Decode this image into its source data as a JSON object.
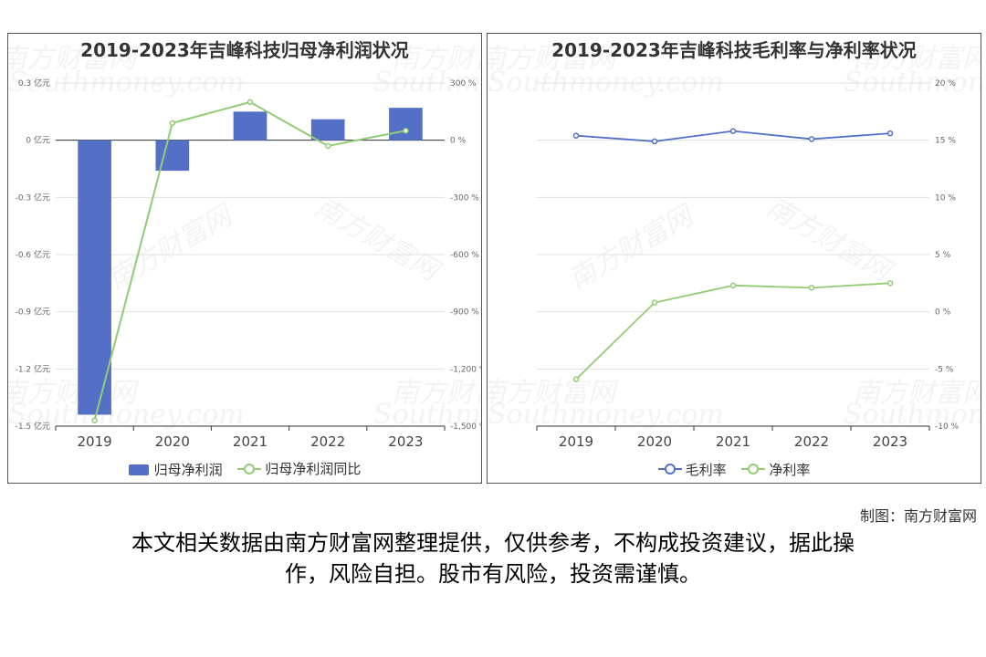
{
  "watermark": {
    "brand": "南方财富网",
    "url": "Southmoney.com"
  },
  "credit": "制图：南方财富网",
  "disclaimer_line1": "本文相关数据由南方财富网整理提供，仅供参考，不构成投资建议，据此操",
  "disclaimer_line2": "作，风险自担。股市有风险，投资需谨慎。",
  "colors": {
    "bar": "#5470c6",
    "green": "#91cc75",
    "blue": "#5470c6",
    "grid": "#e0e0e0",
    "axis": "#666666"
  },
  "chart_data": [
    {
      "type": "bar",
      "title": "2019-2023年吉峰科技归母净利润状况",
      "categories": [
        "2019",
        "2020",
        "2021",
        "2022",
        "2023"
      ],
      "series": [
        {
          "name": "归母净利润",
          "type": "bar",
          "axis": "left",
          "values": [
            -1.44,
            -0.16,
            0.15,
            0.11,
            0.17
          ]
        },
        {
          "name": "归母净利润同比",
          "type": "line",
          "axis": "right",
          "values": [
            -1470,
            90,
            200,
            -30,
            50
          ]
        }
      ],
      "y_left": {
        "ticks": [
          0.3,
          0,
          -0.3,
          -0.6,
          -0.9,
          -1.2,
          -1.5
        ],
        "tick_labels": [
          "0.3 亿元",
          "0 亿元",
          "-0.3 亿元",
          "-0.6 亿元",
          "-0.9 亿元",
          "-1.2 亿元",
          "-1.5 亿元"
        ],
        "ylim": [
          -1.5,
          0.3
        ]
      },
      "y_right": {
        "ticks": [
          300,
          0,
          -300,
          -600,
          -900,
          -1200,
          -1500
        ],
        "tick_labels": [
          "300 %",
          "0 %",
          "-300 %",
          "-600 %",
          "-900 %",
          "-1,200 %",
          "-1,500 %"
        ],
        "ylim": [
          -1500,
          300
        ]
      },
      "legend": [
        "归母净利润",
        "归母净利润同比"
      ]
    },
    {
      "type": "line",
      "title": "2019-2023年吉峰科技毛利率与净利率状况",
      "categories": [
        "2019",
        "2020",
        "2021",
        "2022",
        "2023"
      ],
      "series": [
        {
          "name": "毛利率",
          "values": [
            15.4,
            14.9,
            15.8,
            15.1,
            15.6
          ]
        },
        {
          "name": "净利率",
          "values": [
            -5.9,
            0.8,
            2.3,
            2.1,
            2.5
          ]
        }
      ],
      "y_right": {
        "ticks": [
          20,
          15,
          10,
          5,
          0,
          -5,
          -10
        ],
        "tick_labels": [
          "20 %",
          "15 %",
          "10 %",
          "5 %",
          "0 %",
          "-5 %",
          "-10 %"
        ],
        "ylim": [
          -10,
          20
        ]
      },
      "legend": [
        "毛利率",
        "净利率"
      ]
    }
  ]
}
